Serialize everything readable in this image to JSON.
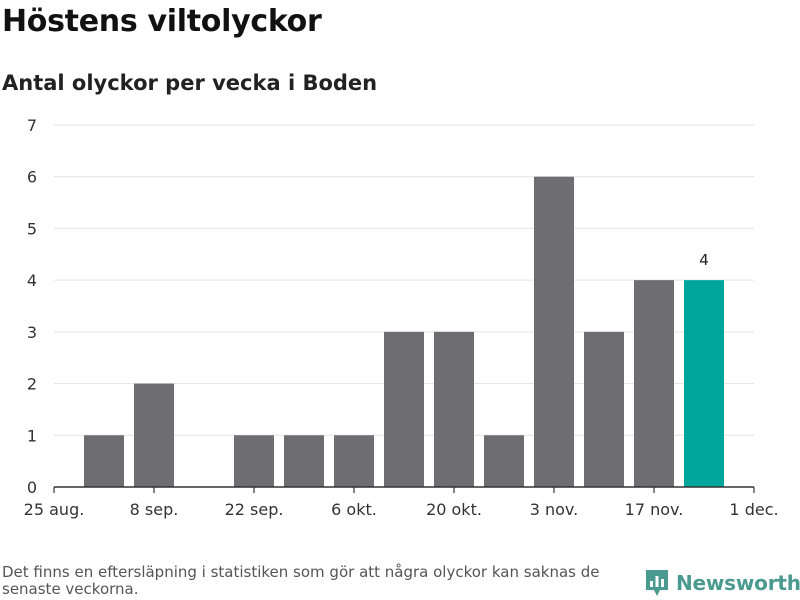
{
  "chart_data": {
    "type": "bar",
    "title": "Höstens viltolyckor",
    "subtitle": "Antal olyckor per vecka i Boden",
    "weeks": [
      "2019-08-26",
      "2019-09-02",
      "2019-09-09",
      "2019-09-16",
      "2019-09-23",
      "2019-09-30",
      "2019-10-07",
      "2019-10-14",
      "2019-10-21",
      "2019-10-28",
      "2019-11-04",
      "2019-11-11",
      "2019-11-18"
    ],
    "values": [
      1,
      2,
      0,
      1,
      1,
      1,
      3,
      3,
      1,
      6,
      3,
      4,
      4
    ],
    "highlight_index": 12,
    "data_labels": [
      {
        "index": 12,
        "text": "4"
      }
    ],
    "x_tick_labels": [
      "25 aug.",
      "8 sep.",
      "22 sep.",
      "6 okt.",
      "20 okt.",
      "3 nov.",
      "17 nov.",
      "1 dec."
    ],
    "y_ticks": [
      0,
      1,
      2,
      3,
      4,
      5,
      6,
      7
    ],
    "ylim": [
      0,
      7
    ],
    "xlabel": "",
    "ylabel": "",
    "grid": true,
    "colors": {
      "bar": "#6d6d72",
      "highlight": "#00a69c",
      "grid": "#e2e2e2",
      "axis": "#333333"
    }
  },
  "footer": {
    "note": "Det finns en eftersläpning i statistiken som gör att några olyckor kan saknas de senaste veckorna.",
    "brand": "Newsworthy"
  }
}
